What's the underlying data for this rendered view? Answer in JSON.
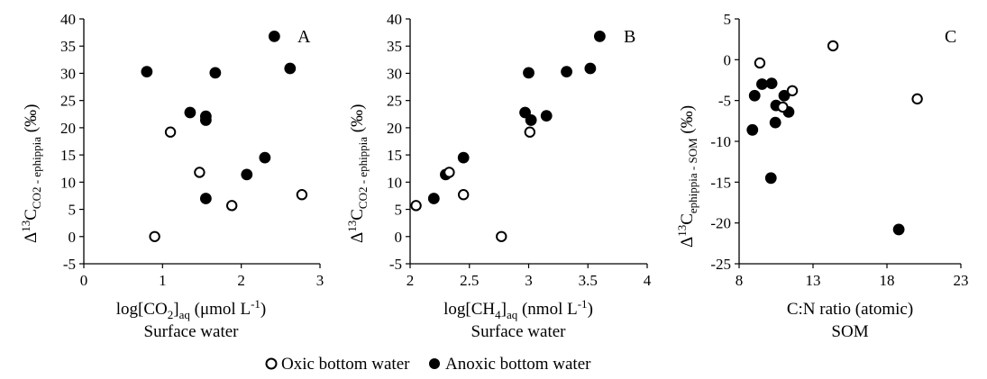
{
  "colors": {
    "anoxic_fill": "#000000",
    "oxic_fill": "#ffffff",
    "stroke": "#000000"
  },
  "legend": {
    "oxic_label": "Oxic bottom water",
    "anoxic_label": "Anoxic bottom water"
  },
  "chart_data": [
    {
      "type": "scatter",
      "panel": "A",
      "ylabel": "Δ13CCO2 - ephippia (‰)",
      "xlabel": "log[CO2]aq (μmol L-1)",
      "xlabel2": "Surface water",
      "xlim": [
        0,
        3
      ],
      "ylim": [
        -5,
        40
      ],
      "xticks": [
        "0",
        "1",
        "2",
        "3"
      ],
      "yticks": [
        "-5",
        "0",
        "5",
        "10",
        "15",
        "20",
        "25",
        "30",
        "35",
        "40"
      ],
      "series": [
        {
          "name": "Anoxic bottom water",
          "marker": "filled",
          "points": [
            [
              0.8,
              30.3
            ],
            [
              1.35,
              22.8
            ],
            [
              1.55,
              22.1
            ],
            [
              1.55,
              21.4
            ],
            [
              1.55,
              7.0
            ],
            [
              1.67,
              30.1
            ],
            [
              2.07,
              11.4
            ],
            [
              2.3,
              14.5
            ],
            [
              2.42,
              36.8
            ],
            [
              2.62,
              30.9
            ]
          ]
        },
        {
          "name": "Oxic bottom water",
          "marker": "open",
          "points": [
            [
              0.9,
              0.0
            ],
            [
              1.1,
              19.2
            ],
            [
              1.47,
              11.8
            ],
            [
              1.88,
              5.7
            ],
            [
              2.77,
              7.7
            ]
          ]
        }
      ]
    },
    {
      "type": "scatter",
      "panel": "B",
      "ylabel": "Δ13CCO2 - ephippia (‰)",
      "xlabel": "log[CH4]aq (nmol L-1)",
      "xlabel2": "Surface water",
      "xlim": [
        2,
        4
      ],
      "ylim": [
        -5,
        40
      ],
      "xticks": [
        "2",
        "2.5",
        "3",
        "3.5",
        "4"
      ],
      "yticks": [
        "-5",
        "0",
        "5",
        "10",
        "15",
        "20",
        "25",
        "30",
        "35",
        "40"
      ],
      "series": [
        {
          "name": "Anoxic bottom water",
          "marker": "filled",
          "points": [
            [
              2.2,
              7.0
            ],
            [
              2.3,
              11.4
            ],
            [
              2.45,
              14.5
            ],
            [
              2.97,
              22.8
            ],
            [
              3.0,
              30.1
            ],
            [
              3.02,
              21.4
            ],
            [
              3.15,
              22.2
            ],
            [
              3.32,
              30.3
            ],
            [
              3.52,
              30.9
            ],
            [
              3.6,
              36.8
            ]
          ]
        },
        {
          "name": "Oxic bottom water",
          "marker": "open",
          "points": [
            [
              2.05,
              5.7
            ],
            [
              2.33,
              11.8
            ],
            [
              2.45,
              7.7
            ],
            [
              2.77,
              0.0
            ],
            [
              3.01,
              19.2
            ]
          ]
        }
      ]
    },
    {
      "type": "scatter",
      "panel": "C",
      "ylabel": "Δ13Cephippia - SOM (‰)",
      "xlabel": "C:N ratio (atomic)",
      "xlabel2": "SOM",
      "xlim": [
        8,
        23
      ],
      "ylim": [
        -25,
        5
      ],
      "xticks": [
        "8",
        "13",
        "18",
        "23"
      ],
      "yticks": [
        "-25",
        "-20",
        "-15",
        "-10",
        "-5",
        "0",
        "5"
      ],
      "series": [
        {
          "name": "Anoxic bottom water",
          "marker": "filled",
          "points": [
            [
              8.9,
              -8.6
            ],
            [
              9.05,
              -4.4
            ],
            [
              9.55,
              -3.0
            ],
            [
              10.2,
              -2.9
            ],
            [
              10.5,
              -5.6
            ],
            [
              10.45,
              -7.7
            ],
            [
              11.05,
              -4.4
            ],
            [
              11.35,
              -6.4
            ],
            [
              10.15,
              -14.5
            ],
            [
              18.8,
              -20.8
            ]
          ]
        },
        {
          "name": "Oxic bottom water",
          "marker": "open",
          "points": [
            [
              9.4,
              -0.4
            ],
            [
              10.95,
              -5.8
            ],
            [
              11.6,
              -3.8
            ],
            [
              14.35,
              1.7
            ],
            [
              20.05,
              -4.8
            ]
          ]
        }
      ]
    }
  ]
}
